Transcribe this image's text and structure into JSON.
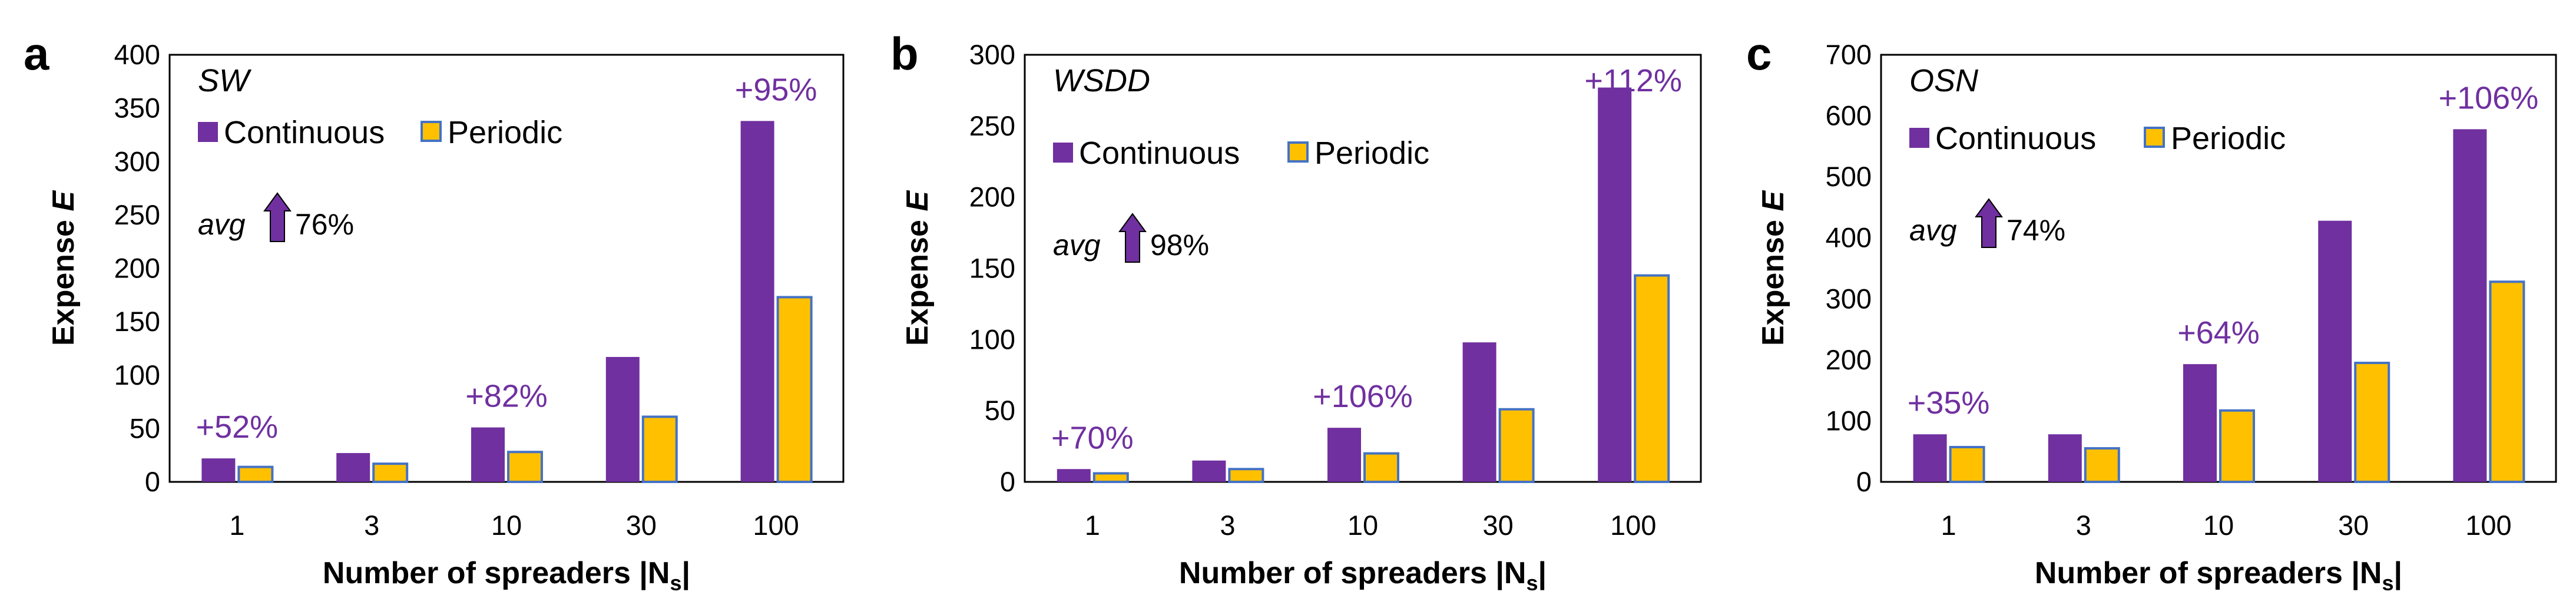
{
  "colors": {
    "continuous": "#7030A0",
    "periodic": "#FFC000",
    "periodic_border": "#4472C4",
    "annotation": "#7030A0"
  },
  "chart_data": [
    {
      "type": "bar",
      "panel": "a",
      "network": "SW",
      "categories": [
        "1",
        "3",
        "10",
        "30",
        "100"
      ],
      "series": [
        {
          "name": "Continuous",
          "values": [
            22,
            27,
            51,
            117,
            338
          ]
        },
        {
          "name": "Periodic",
          "values": [
            14,
            17,
            28,
            61,
            173
          ]
        }
      ],
      "xlabel": "Number of spreaders |N",
      "xlabel_sub": "s",
      "xlabel_end": "|",
      "ylabel": "Expense ",
      "ylabel_var": "E",
      "ylim": [
        0,
        400
      ],
      "yticks": [
        "0",
        "50",
        "100",
        "150",
        "200",
        "250",
        "300",
        "350",
        "400"
      ],
      "legend": "top-left",
      "avg_label": "avg",
      "avg_value": "76%",
      "annotations": [
        {
          "category": "1",
          "text": "+52%"
        },
        {
          "category": "10",
          "text": "+82%"
        },
        {
          "category": "100",
          "text": "+95%"
        }
      ]
    },
    {
      "type": "bar",
      "panel": "b",
      "network": "WSDD",
      "categories": [
        "1",
        "3",
        "10",
        "30",
        "100"
      ],
      "series": [
        {
          "name": "Continuous",
          "values": [
            9,
            15,
            38,
            98,
            277
          ]
        },
        {
          "name": "Periodic",
          "values": [
            6,
            9,
            20,
            51,
            145
          ]
        }
      ],
      "xlabel": "Number of spreaders |N",
      "xlabel_sub": "s",
      "xlabel_end": "|",
      "ylabel": "Expense ",
      "ylabel_var": "E",
      "ylim": [
        0,
        300
      ],
      "yticks": [
        "0",
        "50",
        "100",
        "150",
        "200",
        "250",
        "300"
      ],
      "legend": "top-left",
      "avg_label": "avg",
      "avg_value": "98%",
      "annotations": [
        {
          "category": "1",
          "text": "+70%"
        },
        {
          "category": "10",
          "text": "+106%"
        },
        {
          "category": "100",
          "text": "+112%"
        }
      ]
    },
    {
      "type": "bar",
      "panel": "c",
      "network": "OSN",
      "categories": [
        "1",
        "3",
        "10",
        "30",
        "100"
      ],
      "series": [
        {
          "name": "Continuous",
          "values": [
            78,
            78,
            193,
            428,
            578
          ]
        },
        {
          "name": "Periodic",
          "values": [
            57,
            55,
            117,
            195,
            328
          ]
        }
      ],
      "xlabel": "Number of spreaders |N",
      "xlabel_sub": "s",
      "xlabel_end": "|",
      "ylabel": "Expense ",
      "ylabel_var": "E",
      "ylim": [
        0,
        700
      ],
      "yticks": [
        "0",
        "100",
        "200",
        "300",
        "400",
        "500",
        "600",
        "700"
      ],
      "legend": "top-left",
      "avg_label": "avg",
      "avg_value": "74%",
      "annotations": [
        {
          "category": "1",
          "text": "+35%"
        },
        {
          "category": "10",
          "text": "+64%"
        },
        {
          "category": "100",
          "text": "+106%"
        }
      ]
    }
  ]
}
